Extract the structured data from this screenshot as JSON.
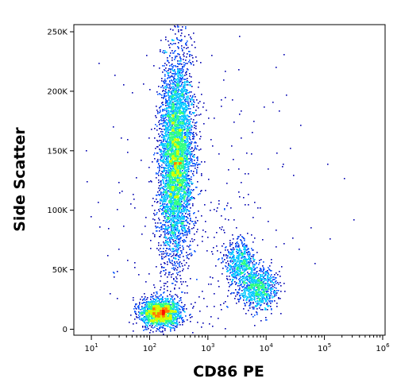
{
  "chart_data": {
    "type": "scatter",
    "subtype": "flow-cytometry-density-dot-plot",
    "xlabel": "CD86 PE",
    "ylabel": "Side Scatter",
    "x_scale": "log",
    "xlim": [
      5,
      1100000
    ],
    "ylim": [
      -5000,
      256000
    ],
    "x_ticks": [
      {
        "value": 10,
        "base": "10",
        "exp": "1"
      },
      {
        "value": 100,
        "base": "10",
        "exp": "2"
      },
      {
        "value": 1000,
        "base": "10",
        "exp": "3"
      },
      {
        "value": 10000,
        "base": "10",
        "exp": "4"
      },
      {
        "value": 100000,
        "base": "10",
        "exp": "5"
      },
      {
        "value": 1000000,
        "base": "10",
        "exp": "6"
      }
    ],
    "y_ticks": [
      {
        "value": 0,
        "label": "0"
      },
      {
        "value": 50000,
        "label": "50K"
      },
      {
        "value": 100000,
        "label": "100K"
      },
      {
        "value": 150000,
        "label": "150K"
      },
      {
        "value": 200000,
        "label": "200K"
      },
      {
        "value": 250000,
        "label": "250K"
      }
    ],
    "grid": false,
    "density_colormap": [
      "#0000b0",
      "#0050ff",
      "#00c8ff",
      "#30ff80",
      "#d0ff00",
      "#ff8000",
      "#ff1000"
    ],
    "populations": [
      {
        "center_x": 280,
        "center_y": 145000,
        "spread_log_x": 0.14,
        "spread_y": 42000,
        "count": 5200,
        "tilt": 0.1
      },
      {
        "center_x": 150,
        "center_y": 14000,
        "spread_log_x": 0.17,
        "spread_y": 6000,
        "count": 1800,
        "tilt": 0.0
      },
      {
        "center_x": 7000,
        "center_y": 35000,
        "spread_log_x": 0.16,
        "spread_y": 9000,
        "count": 900,
        "tilt": 0.0
      },
      {
        "center_x": 3500,
        "center_y": 55000,
        "spread_log_x": 0.13,
        "spread_y": 10000,
        "count": 600,
        "tilt": 0.0
      },
      {
        "center_x": 600,
        "center_y": 80000,
        "spread_log_x": 0.9,
        "spread_y": 70000,
        "count": 350,
        "tilt": 0.0
      }
    ]
  }
}
